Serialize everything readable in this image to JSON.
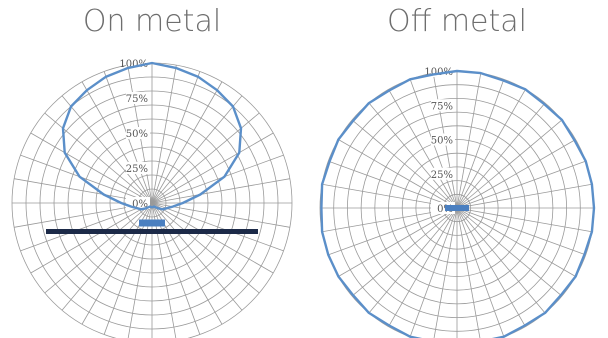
{
  "colors": {
    "grid": "#9a9a9a",
    "series": "#5b8fc9",
    "device": "#4a7fc0",
    "metal_plate": "#1c2a48",
    "title_text": "#6e6e6e",
    "tick_text": "#555555"
  },
  "chart_data": [
    {
      "type": "polar-line",
      "title": "On metal",
      "radial_axis": {
        "range": [
          0,
          100
        ],
        "unit": "%",
        "tick_labels": [
          "0%",
          "25%",
          "50%",
          "75%",
          "100%"
        ],
        "rings": 10
      },
      "angular_axis": {
        "spokes": 36,
        "step_deg": 10,
        "zero_direction": "up",
        "direction": "clockwise"
      },
      "grid": true,
      "series": [
        {
          "theta_deg": [
            0,
            10,
            20,
            30,
            40,
            50,
            60,
            70,
            80,
            90,
            100,
            110,
            120,
            130,
            140,
            150,
            160,
            170,
            180,
            190,
            200,
            210,
            220,
            230,
            240,
            250,
            260,
            270,
            280,
            290,
            300,
            310,
            320,
            330,
            340,
            350
          ],
          "r_percent": [
            100,
            98,
            96,
            93,
            90,
            83,
            72,
            55,
            35,
            22,
            15,
            11,
            9,
            6,
            4,
            3,
            3,
            3,
            3,
            3,
            3,
            3,
            4,
            6,
            9,
            11,
            15,
            22,
            35,
            55,
            72,
            83,
            90,
            93,
            96,
            98
          ]
        }
      ],
      "annotations": [
        "device-bar",
        "metal-plate"
      ]
    },
    {
      "type": "polar-line",
      "title": "Off metal",
      "radial_axis": {
        "range": [
          0,
          100
        ],
        "unit": "%",
        "tick_labels": [
          "0%",
          "25%",
          "50%",
          "75%",
          "100%"
        ],
        "rings": 10
      },
      "angular_axis": {
        "spokes": 36,
        "step_deg": 10,
        "zero_direction": "up",
        "direction": "clockwise"
      },
      "grid": true,
      "series": [
        {
          "theta_deg": [
            0,
            10,
            20,
            30,
            40,
            50,
            60,
            70,
            80,
            90,
            100,
            110,
            120,
            130,
            140,
            150,
            160,
            170,
            180,
            190,
            200,
            210,
            220,
            230,
            240,
            250,
            260,
            270,
            280,
            290,
            300,
            310,
            320,
            330,
            340,
            350
          ],
          "r_percent": [
            100,
            100,
            99,
            100,
            99,
            100,
            99,
            100,
            100,
            100,
            100,
            99,
            100,
            99,
            100,
            99,
            100,
            99,
            100,
            99,
            100,
            99,
            100,
            99,
            100,
            100,
            100,
            99,
            100,
            99,
            100,
            99,
            100,
            99,
            100,
            99
          ]
        }
      ],
      "annotations": [
        "device-bar"
      ]
    }
  ]
}
